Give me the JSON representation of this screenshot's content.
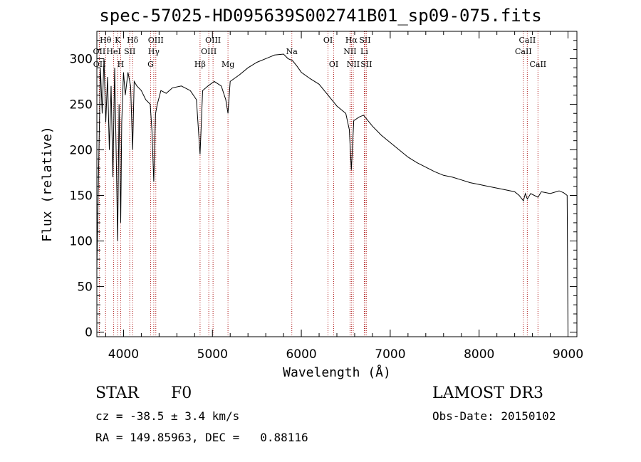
{
  "chart_data": {
    "type": "line",
    "title": "spec-57025-HD095639S002741B01_sp09-075.fits",
    "xlabel": "Wavelength (Å)",
    "ylabel": "Flux (relative)",
    "xlim": [
      3700,
      9100
    ],
    "ylim": [
      -5,
      330
    ],
    "xticks": [
      4000,
      5000,
      6000,
      7000,
      8000,
      9000
    ],
    "yticks": [
      0,
      50,
      100,
      150,
      200,
      250,
      300
    ],
    "series": [
      {
        "name": "spectrum",
        "x": [
          3700,
          3720,
          3740,
          3760,
          3780,
          3800,
          3820,
          3840,
          3860,
          3880,
          3900,
          3920,
          3934,
          3950,
          3968,
          3980,
          4000,
          4020,
          4050,
          4080,
          4102,
          4120,
          4150,
          4200,
          4250,
          4300,
          4320,
          4340,
          4360,
          4380,
          4420,
          4480,
          4550,
          4650,
          4750,
          4820,
          4861,
          4890,
          4950,
          5020,
          5100,
          5150,
          5175,
          5200,
          5300,
          5400,
          5500,
          5600,
          5700,
          5800,
          5850,
          5900,
          5950,
          6000,
          6100,
          6200,
          6300,
          6400,
          6500,
          6540,
          6563,
          6590,
          6650,
          6700,
          6800,
          6900,
          7000,
          7100,
          7200,
          7300,
          7400,
          7500,
          7600,
          7700,
          7800,
          7900,
          8000,
          8100,
          8200,
          8300,
          8400,
          8450,
          8498,
          8520,
          8542,
          8580,
          8662,
          8700,
          8800,
          8900,
          8950,
          8990,
          9000
        ],
        "values": [
          70,
          180,
          290,
          240,
          300,
          230,
          280,
          200,
          270,
          170,
          290,
          180,
          100,
          250,
          120,
          230,
          285,
          260,
          285,
          270,
          200,
          275,
          270,
          265,
          255,
          250,
          220,
          165,
          240,
          250,
          265,
          262,
          268,
          270,
          265,
          255,
          195,
          265,
          270,
          275,
          270,
          255,
          240,
          275,
          282,
          290,
          296,
          300,
          304,
          305,
          300,
          298,
          292,
          285,
          278,
          272,
          260,
          248,
          240,
          222,
          178,
          232,
          236,
          238,
          226,
          216,
          208,
          200,
          192,
          186,
          181,
          176,
          172,
          170,
          167,
          164,
          162,
          160,
          158,
          156,
          154,
          150,
          144,
          152,
          146,
          152,
          148,
          154,
          152,
          155,
          153,
          150,
          0
        ]
      }
    ],
    "lines": [
      {
        "name": "Hθ",
        "wl": 3798,
        "row": 0
      },
      {
        "name": "OII",
        "wl": 3727,
        "row": 1
      },
      {
        "name": "OII",
        "wl": 3729,
        "row": 2
      },
      {
        "name": "K",
        "wl": 3934,
        "row": 0
      },
      {
        "name": "HeI",
        "wl": 3889,
        "row": 1
      },
      {
        "name": "H",
        "wl": 3968,
        "row": 2
      },
      {
        "name": "Hδ",
        "wl": 4102,
        "row": 0
      },
      {
        "name": "SII",
        "wl": 4070,
        "row": 1
      },
      {
        "name": "OIII",
        "wl": 4363,
        "row": 0
      },
      {
        "name": "Hγ",
        "wl": 4340,
        "row": 1
      },
      {
        "name": "G",
        "wl": 4305,
        "row": 2
      },
      {
        "name": "OIII",
        "wl": 5007,
        "row": 0
      },
      {
        "name": "OIII",
        "wl": 4959,
        "row": 1
      },
      {
        "name": "Hβ",
        "wl": 4861,
        "row": 2
      },
      {
        "name": "Mg",
        "wl": 5175,
        "row": 2
      },
      {
        "name": "Na",
        "wl": 5893,
        "row": 1
      },
      {
        "name": "OI",
        "wl": 6300,
        "row": 0
      },
      {
        "name": "OI",
        "wl": 6364,
        "row": 2
      },
      {
        "name": "Hα",
        "wl": 6563,
        "row": 0
      },
      {
        "name": "NII",
        "wl": 6548,
        "row": 1
      },
      {
        "name": "NII",
        "wl": 6584,
        "row": 2
      },
      {
        "name": "SII",
        "wl": 6716,
        "row": 0
      },
      {
        "name": "Li",
        "wl": 6708,
        "row": 1
      },
      {
        "name": "SII",
        "wl": 6731,
        "row": 2
      },
      {
        "name": "CaII",
        "wl": 8542,
        "row": 0
      },
      {
        "name": "CaII",
        "wl": 8498,
        "row": 1
      },
      {
        "name": "CaII",
        "wl": 8662,
        "row": 2
      }
    ]
  },
  "info": {
    "object_class": "STAR",
    "subclass": "F0",
    "survey": "LAMOST DR3",
    "cz": "cz = -38.5 ± 3.4 km/s",
    "obs_date": "Obs-Date: 20150102",
    "coords": "RA = 149.85963, DEC =   0.88116"
  },
  "colors": {
    "line_marker": "#b22222",
    "spectrum": "#000000"
  }
}
